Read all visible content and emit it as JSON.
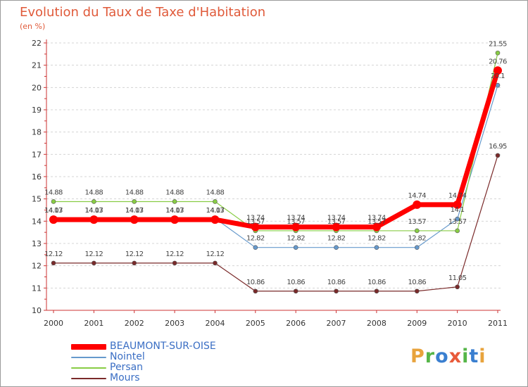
{
  "title": "Evolution du Taux de Taxe d'Habitation",
  "unit_label": "(en %)",
  "logo": {
    "letters": [
      {
        "char": "P",
        "color": "#e8a33c"
      },
      {
        "char": "r",
        "color": "#55b548"
      },
      {
        "char": "o",
        "color": "#3a7fd0"
      },
      {
        "char": "x",
        "color": "#e85a3a"
      },
      {
        "char": "i",
        "color": "#55b548"
      },
      {
        "char": "t",
        "color": "#3a7fd0"
      },
      {
        "char": "i",
        "color": "#e8a33c"
      }
    ]
  },
  "chart_data": {
    "type": "line",
    "title": "Evolution du Taux de Taxe d'Habitation",
    "ylabel": "(en %)",
    "xlabel": "",
    "ylim": [
      10,
      22
    ],
    "yticks": [
      "10",
      "11",
      "12",
      "13",
      "14",
      "15",
      "16",
      "17",
      "18",
      "19",
      "20",
      "21",
      "22"
    ],
    "categories": [
      "2000",
      "2001",
      "2002",
      "2003",
      "2004",
      "2005",
      "2006",
      "2007",
      "2008",
      "2009",
      "2010",
      "2011"
    ],
    "grid": "horizontal dashed",
    "legend_position": "bottom-left",
    "series": [
      {
        "name": "BEAUMONT-SUR-OISE",
        "color": "#ff0000",
        "values": [
          14.07,
          14.07,
          14.07,
          14.07,
          14.07,
          13.74,
          13.74,
          13.74,
          13.74,
          14.74,
          14.74,
          20.76
        ],
        "labels": [
          "14.07",
          "14.07",
          "14.07",
          "14.07",
          "14.07",
          "13.74",
          "13.74",
          "13.74",
          "13.74",
          "14.74",
          "14.74",
          "20.76"
        ]
      },
      {
        "name": "Nointel",
        "color": "#6699cc",
        "values": [
          14.13,
          14.13,
          14.13,
          14.13,
          14.13,
          12.82,
          12.82,
          12.82,
          12.82,
          12.82,
          14.1,
          20.1
        ],
        "labels": [
          "14.13",
          "14.13",
          "14.13",
          "14.13",
          "14.13",
          "12.82",
          "12.82",
          "12.82",
          "12.82",
          "12.82",
          "14.1",
          "20.1"
        ]
      },
      {
        "name": "Persan",
        "color": "#88cc44",
        "values": [
          14.88,
          14.88,
          14.88,
          14.88,
          14.88,
          13.57,
          13.57,
          13.57,
          13.57,
          13.57,
          13.57,
          21.55
        ],
        "labels": [
          "14.88",
          "14.88",
          "14.88",
          "14.88",
          "14.88",
          "13.57",
          "13.57",
          "13.57",
          "13.57",
          "13.57",
          "13.57",
          "21.55"
        ]
      },
      {
        "name": "Mours",
        "color": "#7a2a2a",
        "values": [
          12.12,
          12.12,
          12.12,
          12.12,
          12.12,
          10.86,
          10.86,
          10.86,
          10.86,
          10.86,
          11.05,
          16.95
        ],
        "labels": [
          "12.12",
          "12.12",
          "12.12",
          "12.12",
          "12.12",
          "10.86",
          "10.86",
          "10.86",
          "10.86",
          "10.86",
          "11.05",
          "16.95"
        ]
      }
    ]
  }
}
